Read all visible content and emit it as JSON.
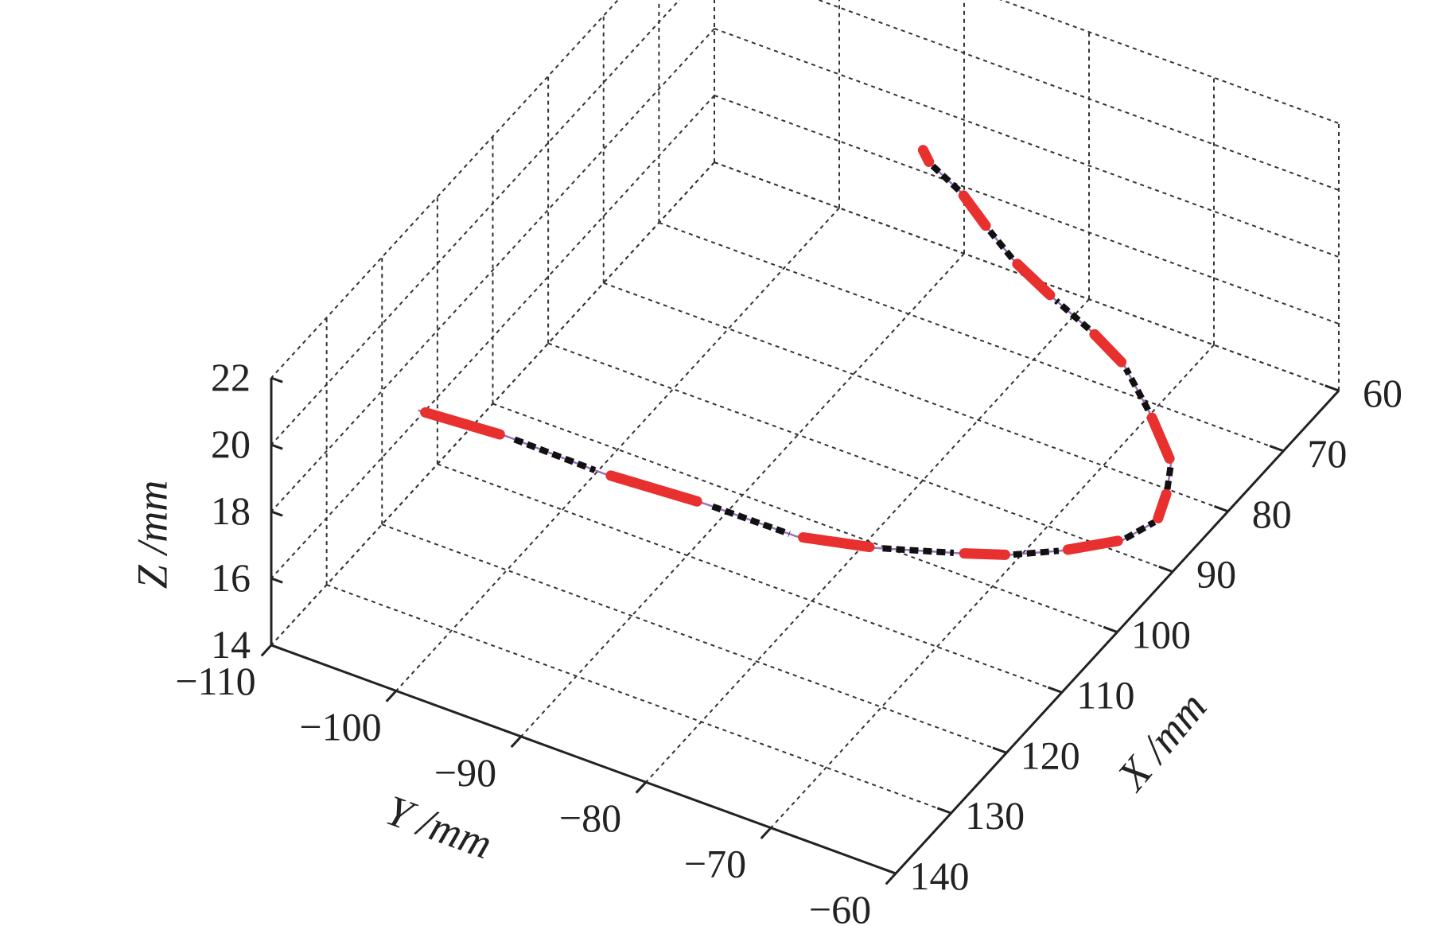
{
  "chart_data": {
    "type": "line",
    "projection": "3d",
    "title": "",
    "xlabel": "X /mm",
    "ylabel": "Y /mm",
    "zlabel": "Z /mm",
    "xlim": [
      60,
      140
    ],
    "ylim": [
      -110,
      -60
    ],
    "zlim": [
      14,
      22
    ],
    "x_ticks": [
      "60",
      "70",
      "80",
      "90",
      "100",
      "110",
      "120",
      "130",
      "140"
    ],
    "y_ticks": [
      "−110",
      "−100",
      "−90",
      "−80",
      "−70",
      "−60"
    ],
    "z_ticks": [
      "14",
      "16",
      "18",
      "20",
      "22"
    ],
    "grid": true,
    "series": [
      {
        "line_color": "#9b72c0",
        "segment_colors": [
          "#e8302f",
          "#111111"
        ],
        "style": "dashed, alternating red and black",
        "points": [
          {
            "x": 127,
            "y": -104,
            "z": 19.5
          },
          {
            "x": 120,
            "y": -100,
            "z": 18.0
          },
          {
            "x": 114,
            "y": -95,
            "z": 16.5
          },
          {
            "x": 109,
            "y": -89,
            "z": 15.5
          },
          {
            "x": 106,
            "y": -83,
            "z": 14.8
          },
          {
            "x": 103,
            "y": -78,
            "z": 14.6
          },
          {
            "x": 99,
            "y": -73,
            "z": 14.4
          },
          {
            "x": 97,
            "y": -70,
            "z": 14.4
          },
          {
            "x": 94,
            "y": -67,
            "z": 14.4
          },
          {
            "x": 90,
            "y": -64,
            "z": 14.4
          },
          {
            "x": 86,
            "y": -63,
            "z": 14.4
          },
          {
            "x": 82,
            "y": -64,
            "z": 14.4
          },
          {
            "x": 79,
            "y": -65,
            "z": 14.6
          },
          {
            "x": 76,
            "y": -68,
            "z": 15.1
          },
          {
            "x": 74,
            "y": -71,
            "z": 15.8
          },
          {
            "x": 73,
            "y": -74,
            "z": 16.2
          },
          {
            "x": 71,
            "y": -78,
            "z": 16.3
          },
          {
            "x": 69,
            "y": -82,
            "z": 16.5
          },
          {
            "x": 67,
            "y": -85,
            "z": 16.7
          },
          {
            "x": 65,
            "y": -88,
            "z": 17.0
          },
          {
            "x": 64,
            "y": -91,
            "z": 17.3
          },
          {
            "x": 63,
            "y": -92,
            "z": 17.4
          }
        ]
      }
    ]
  },
  "colors": {
    "axis": "#222222",
    "grid": "#333333",
    "background": "#ffffff"
  }
}
